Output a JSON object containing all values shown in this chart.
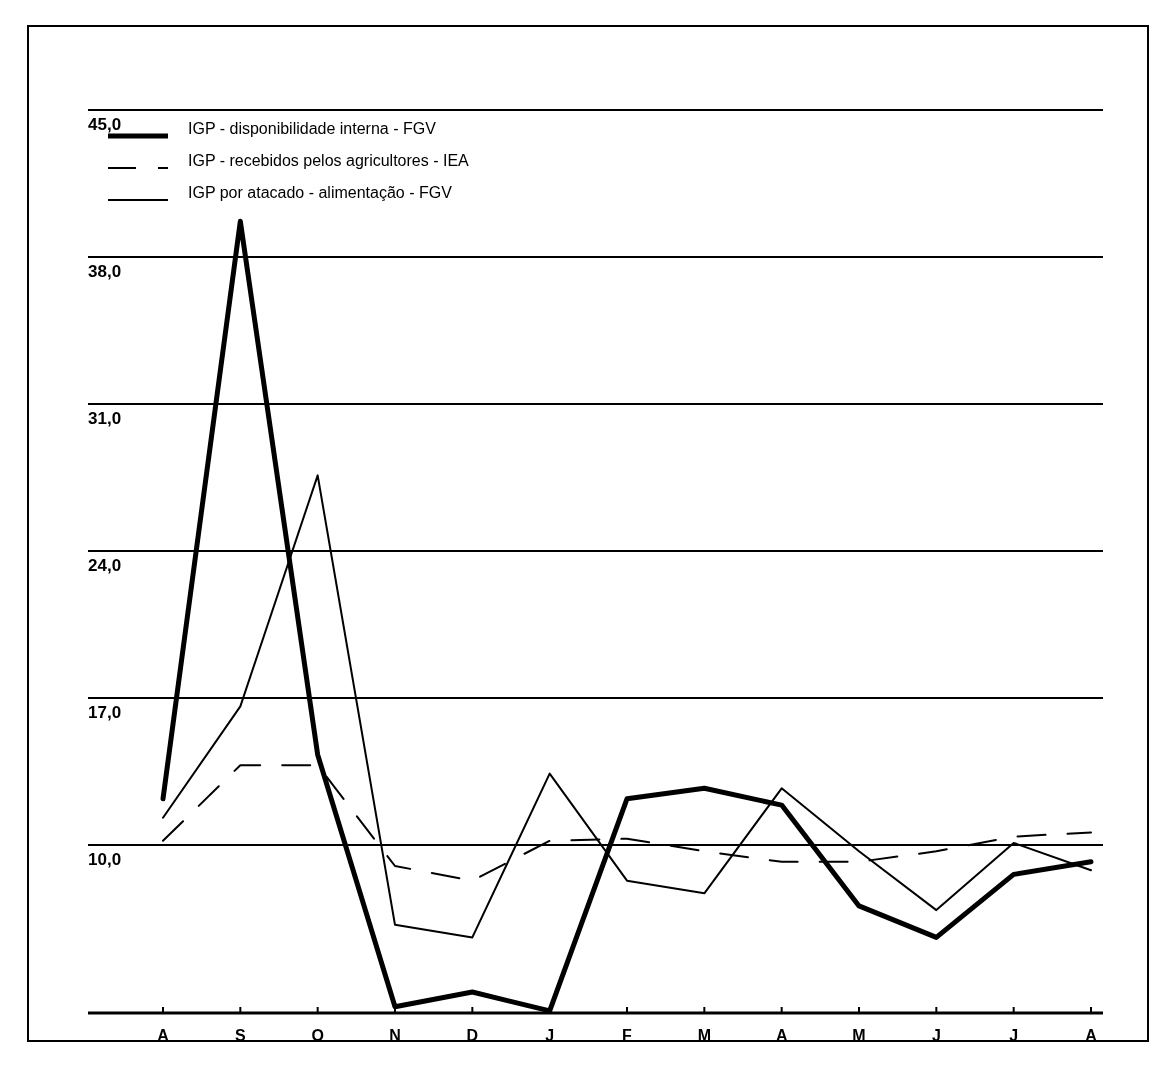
{
  "chart_data": {
    "type": "line",
    "categories": [
      "A",
      "S",
      "O",
      "N",
      "D",
      "J",
      "F",
      "M",
      "A",
      "M",
      "J",
      "J",
      "A"
    ],
    "series": [
      {
        "name": "IGP - disponibilidade interna - FGV",
        "color": "#000000",
        "line_style": "solid",
        "values": [
          12.2,
          39.7,
          14.3,
          2.3,
          3.0,
          2.1,
          12.2,
          12.7,
          11.9,
          7.1,
          5.6,
          8.6,
          9.2
        ]
      },
      {
        "name": "IGP - recebidos pelos agricultores - IEA",
        "color": "#000000",
        "line_style": "dashed",
        "values": [
          10.2,
          13.8,
          13.8,
          9.0,
          8.3,
          10.2,
          10.3,
          9.7,
          9.2,
          9.2,
          9.7,
          10.4,
          10.6
        ]
      },
      {
        "name": "IGP por atacado - alimentação - FGV",
        "color": "#000000",
        "line_style": "solid",
        "values": [
          11.3,
          16.6,
          27.6,
          6.2,
          5.6,
          13.4,
          8.3,
          7.7,
          12.7,
          9.7,
          6.9,
          10.1,
          8.8
        ]
      }
    ],
    "ylim": [
      2,
      45
    ],
    "yticks": [
      {
        "value": 10,
        "label": "10,0"
      },
      {
        "value": 17,
        "label": "17,0"
      },
      {
        "value": 24,
        "label": "24,0"
      },
      {
        "value": 31,
        "label": "31,0"
      },
      {
        "value": 38,
        "label": "38,0"
      },
      {
        "value": 45,
        "label": "45,0"
      }
    ],
    "grid": "y",
    "legend": "top left",
    "marker": "none"
  }
}
